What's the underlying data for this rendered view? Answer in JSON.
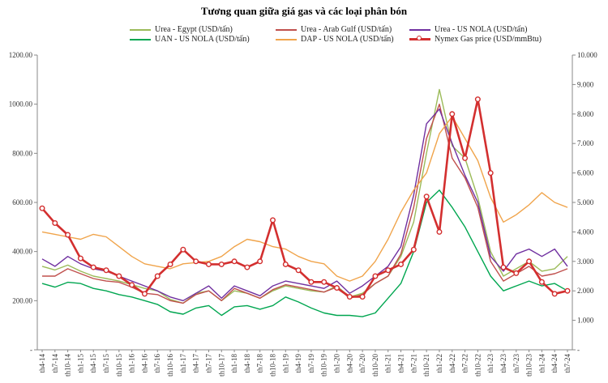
{
  "chart_data": {
    "type": "line",
    "title": "Tương quan giữa giá gas và các loại phân bón",
    "y_left_ticks": [
      "-",
      "200.00",
      "400.00",
      "600.00",
      "800.00",
      "1000.00",
      "1200.00"
    ],
    "y_right_ticks": [
      "-",
      "1.000",
      "2.000",
      "3.000",
      "4.000",
      "5.000",
      "6.000",
      "7.000",
      "8.000",
      "9.000",
      "10.000"
    ],
    "ylim_left": [
      0,
      1200
    ],
    "ylim_right": [
      0,
      10
    ],
    "x_labels": [
      "th4-14",
      "th7-14",
      "th10-14",
      "th1-15",
      "th4-15",
      "th7-15",
      "th10-15",
      "th1-16",
      "th4-16",
      "th7-16",
      "th10-16",
      "th1-17",
      "th4-17",
      "th7-17",
      "th10-17",
      "th1-18",
      "th4-18",
      "th7-18",
      "th10-18",
      "th1-19",
      "th4-19",
      "th7-19",
      "th10-19",
      "th1-20",
      "th4-20",
      "th7-20",
      "th10-20",
      "th1-21",
      "th4-21",
      "th7-21",
      "th10-21",
      "th1-22",
      "th4-22",
      "th7-22",
      "th10-22",
      "th1-23",
      "th4-23",
      "th7-23",
      "th10-23",
      "th1-24",
      "th4-24",
      "th7-24"
    ],
    "series": [
      {
        "name": "Urea - Egypt (USD/tấn)",
        "color": "#9bbb59",
        "axis": "left",
        "values": [
          340,
          325,
          345,
          320,
          300,
          290,
          280,
          265,
          250,
          240,
          205,
          190,
          230,
          240,
          200,
          240,
          230,
          210,
          240,
          260,
          250,
          240,
          235,
          260,
          215,
          230,
          270,
          300,
          380,
          520,
          800,
          1060,
          830,
          780,
          620,
          400,
          300,
          330,
          360,
          320,
          330,
          380
        ]
      },
      {
        "name": "Urea - Arab Gulf (USD/tấn)",
        "color": "#c0504d",
        "axis": "left",
        "values": [
          300,
          300,
          330,
          310,
          290,
          280,
          275,
          255,
          230,
          225,
          200,
          190,
          225,
          240,
          200,
          250,
          230,
          210,
          245,
          265,
          255,
          245,
          235,
          255,
          210,
          225,
          270,
          300,
          390,
          580,
          860,
          1000,
          780,
          700,
          580,
          360,
          280,
          310,
          340,
          300,
          310,
          330
        ]
      },
      {
        "name": "Urea - US NOLA (USD/tấn)",
        "color": "#7030a0",
        "axis": "left",
        "values": [
          370,
          340,
          380,
          350,
          330,
          320,
          300,
          280,
          260,
          240,
          215,
          200,
          230,
          260,
          210,
          260,
          240,
          220,
          260,
          280,
          270,
          260,
          250,
          280,
          230,
          260,
          300,
          340,
          420,
          630,
          920,
          980,
          840,
          710,
          600,
          380,
          320,
          390,
          410,
          380,
          410,
          340
        ]
      },
      {
        "name": "UAN - US NOLA (USD/tấn)",
        "color": "#00a650",
        "axis": "left",
        "values": [
          270,
          255,
          275,
          270,
          250,
          240,
          225,
          215,
          200,
          185,
          155,
          145,
          170,
          180,
          140,
          175,
          180,
          165,
          180,
          215,
          195,
          170,
          150,
          140,
          140,
          135,
          150,
          210,
          270,
          400,
          600,
          650,
          580,
          500,
          400,
          300,
          240,
          260,
          280,
          260,
          270,
          240
        ]
      },
      {
        "name": "DAP - US NOLA (USD/tấn)",
        "color": "#f0a44b",
        "axis": "left",
        "values": [
          480,
          470,
          460,
          450,
          470,
          460,
          420,
          380,
          350,
          340,
          330,
          350,
          355,
          360,
          380,
          420,
          450,
          440,
          420,
          410,
          380,
          360,
          350,
          300,
          280,
          300,
          360,
          450,
          560,
          650,
          720,
          880,
          950,
          860,
          770,
          620,
          520,
          550,
          590,
          640,
          600,
          580
        ]
      },
      {
        "name": "Nymex Gas price (USD/mmBtu)",
        "color": "#d32f2f",
        "axis": "right",
        "values": [
          4.8,
          4.3,
          3.9,
          3.1,
          2.8,
          2.7,
          2.5,
          2.2,
          1.9,
          2.5,
          2.9,
          3.4,
          3.0,
          2.9,
          2.9,
          3.0,
          2.8,
          3.0,
          4.4,
          2.9,
          2.7,
          2.3,
          2.3,
          2.1,
          1.8,
          1.8,
          2.5,
          2.7,
          2.9,
          3.4,
          5.2,
          4.0,
          8.0,
          6.5,
          8.5,
          6.0,
          2.8,
          2.6,
          3.0,
          2.3,
          1.9,
          2.0
        ]
      }
    ]
  }
}
